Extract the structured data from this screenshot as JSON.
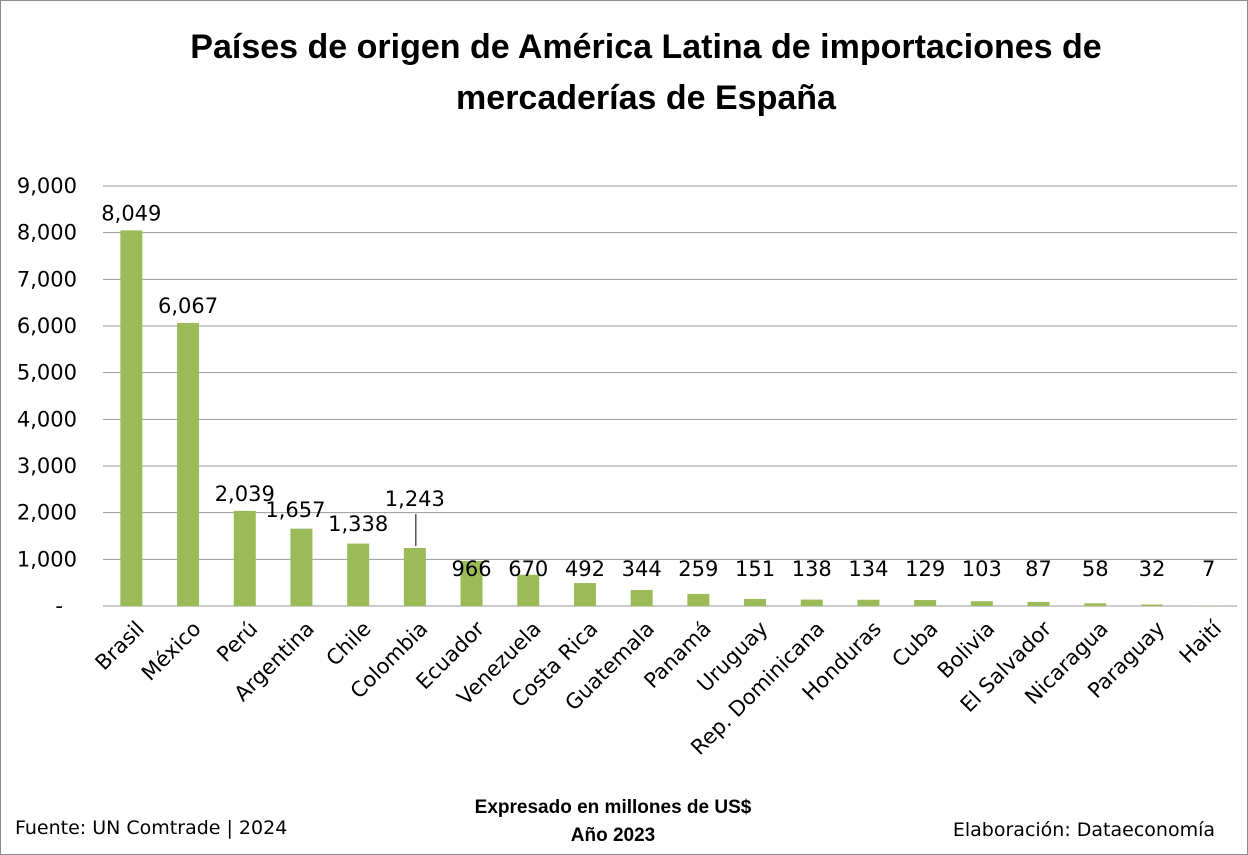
{
  "chart_data": {
    "type": "bar",
    "title_lines": [
      "Países de origen de América Latina de importaciones de",
      "mercaderías de España"
    ],
    "categories": [
      "Brasil",
      "México",
      "Perú",
      "Argentina",
      "Chile",
      "Colombia",
      "Ecuador",
      "Venezuela",
      "Costa Rica",
      "Guatemala",
      "Panamá",
      "Uruguay",
      "Rep. Dominicana",
      "Honduras",
      "Cuba",
      "Bolivia",
      "El Salvador",
      "Nicaragua",
      "Paraguay",
      "Haití"
    ],
    "values": [
      8049,
      6067,
      2039,
      1657,
      1338,
      1243,
      966,
      670,
      492,
      344,
      259,
      151,
      138,
      134,
      129,
      103,
      87,
      58,
      32,
      7
    ],
    "value_labels": [
      "8,049",
      "6,067",
      "2,039",
      "1,657",
      "1,338",
      "1,243",
      "966",
      "670",
      "492",
      "344",
      "259",
      "151",
      "138",
      "134",
      "129",
      "103",
      "87",
      "58",
      "32",
      "7"
    ],
    "ylim": [
      0,
      9000
    ],
    "yticks": [
      0,
      1000,
      2000,
      3000,
      4000,
      5000,
      6000,
      7000,
      8000,
      9000
    ],
    "ytick_labels": [
      "-",
      "1,000",
      "2,000",
      "3,000",
      "4,000",
      "5,000",
      "6,000",
      "7,000",
      "8,000",
      "9,000"
    ],
    "grid": true,
    "legend": "none",
    "bar_color": "#9bbb59",
    "subtitle_lines": [
      "Expresado en millones de US$",
      "Año 2023"
    ]
  },
  "footer": {
    "source": "Fuente: UN Comtrade | 2024",
    "credit": "Elaboración: Dataeconomía"
  }
}
